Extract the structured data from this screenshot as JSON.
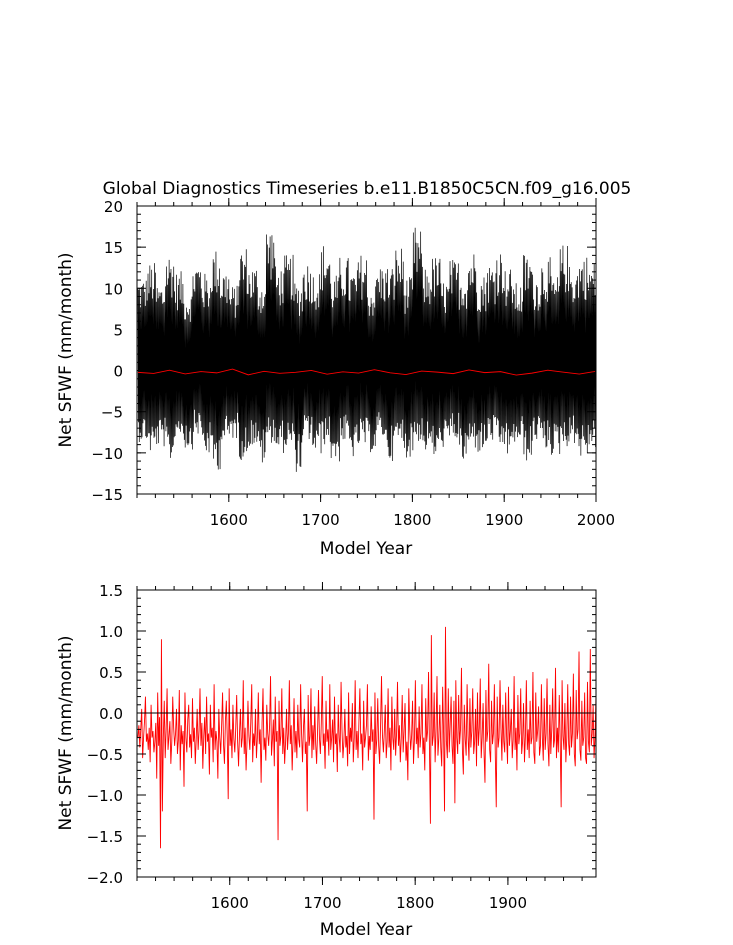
{
  "title": "Global Diagnostics Timeseries b.e11.B1850C5CN.f09_g16.005",
  "colors": {
    "monthly": "#000000",
    "annual": "#ff0000",
    "zero_line": "#000000",
    "axes": "#000000"
  },
  "chart_data": [
    {
      "type": "line",
      "title": "Global Diagnostics Timeseries b.e11.B1850C5CN.f09_g16.005",
      "xlabel": "Model Year",
      "ylabel": "Net SFWF (mm/month)",
      "xlim": [
        1500,
        2000
      ],
      "ylim": [
        -15,
        20
      ],
      "x_ticks": [
        1600,
        1700,
        1800,
        1900,
        2000
      ],
      "y_ticks": [
        -15,
        -10,
        -5,
        0,
        5,
        10,
        15,
        20
      ],
      "grid": false,
      "series": [
        {
          "style": "monthly",
          "color": "#000000",
          "x_start": 1501,
          "x_end": 1999,
          "cycle_min_values": [
            -8.7,
            -10.2,
            -9.4,
            -11.3,
            -8.1,
            -9.6,
            -7.9,
            -10.4,
            -12.1,
            -9.0,
            -8.4,
            -10.9,
            -9.3,
            -11.6,
            -8.8,
            -10.1,
            -9.7,
            -12.4,
            -8.6,
            -10.3,
            -9.1,
            -11.2,
            -8.9,
            -10.7,
            -9.5,
            -10.0,
            -8.3,
            -11.0,
            -9.2,
            -10.6,
            -8.7,
            -9.9,
            -10.8,
            -9.4,
            -8.5,
            -11.4,
            -9.6,
            -10.2,
            -8.8,
            -9.7,
            -10.5,
            -9.0,
            -11.1,
            -8.6,
            -9.8,
            -10.4,
            -9.3,
            -8.9,
            -10.7,
            -9.5
          ],
          "cycle_max_values": [
            11.5,
            13.2,
            10.8,
            14.6,
            12.1,
            9.8,
            13.7,
            11.9,
            14.9,
            12.6,
            10.4,
            15.3,
            13.0,
            11.2,
            17.9,
            12.8,
            14.1,
            10.9,
            13.5,
            12.2,
            15.6,
            11.7,
            13.9,
            12.4,
            14.3,
            10.6,
            13.1,
            12.9,
            15.2,
            11.4,
            17.6,
            12.7,
            14.0,
            11.1,
            13.6,
            12.3,
            14.8,
            11.8,
            13.3,
            15.0,
            12.5,
            10.7,
            14.4,
            12.0,
            13.8,
            11.6,
            15.4,
            12.9,
            14.2,
            13.4
          ]
        },
        {
          "style": "annual",
          "color": "#ff0000",
          "x_start": 1501,
          "x_end": 1999,
          "values": [
            -0.22,
            -0.35,
            0.05,
            -0.41,
            -0.12,
            -0.28,
            0.18,
            -0.52,
            -0.09,
            -0.33,
            -0.21,
            0.02,
            -0.44,
            -0.15,
            -0.3,
            0.11,
            -0.27,
            -0.48,
            -0.06,
            -0.19,
            -0.37,
            0.08,
            -0.25,
            -0.13,
            -0.55,
            -0.31,
            0.04,
            -0.2,
            -0.42,
            -0.1
          ]
        }
      ]
    },
    {
      "type": "line",
      "title": "",
      "xlabel": "Model Year",
      "ylabel": "Net SFWF (mm/month)",
      "xlim": [
        1500,
        1995
      ],
      "ylim": [
        -2.0,
        1.5
      ],
      "x_ticks": [
        1600,
        1700,
        1800,
        1900
      ],
      "y_ticks": [
        -2.0,
        -1.5,
        -1.0,
        -0.5,
        0.0,
        0.5,
        1.0,
        1.5
      ],
      "grid": false,
      "zero_line": true,
      "series": [
        {
          "color": "#ff0000",
          "x_start": 1501,
          "x_end": 1999,
          "values": [
            -0.3,
            -0.15,
            -0.42,
            -0.2,
            0.05,
            -0.55,
            -0.3,
            -0.1,
            0.2,
            -0.35,
            -0.25,
            -0.45,
            -0.18,
            -0.6,
            0.1,
            -0.3,
            -0.22,
            -0.48,
            -0.35,
            -0.12,
            -0.8,
            0.25,
            -0.4,
            -0.05,
            -1.65,
            0.9,
            -1.2,
            -0.3,
            0.15,
            -0.55,
            -0.2,
            0.3,
            -0.45,
            -0.28,
            -0.1,
            -0.62,
            -0.35,
            0.2,
            -0.18,
            -0.4,
            -0.25,
            0.05,
            -0.5,
            -0.33,
            0.28,
            -0.7,
            -0.15,
            -0.38,
            -0.22,
            -0.9,
            0.25,
            -0.3,
            -0.48,
            -0.08,
            0.1,
            -0.42,
            -0.26,
            -0.55,
            0.18,
            -0.35,
            -0.18,
            -0.62,
            -0.3,
            0.05,
            -0.45,
            -0.22,
            0.3,
            -0.4,
            -0.12,
            -0.68,
            -0.28,
            -0.05,
            -0.5,
            0.2,
            -0.35,
            -0.25,
            -0.75,
            0.1,
            -0.3,
            -0.18,
            -0.6,
            0.35,
            -0.45,
            -0.22,
            -0.35,
            -0.8,
            0.05,
            -0.3,
            -0.5,
            -0.15,
            0.25,
            -0.38,
            -0.62,
            -0.1,
            0.15,
            -0.3,
            -1.05,
            0.3,
            -0.4,
            -0.2,
            -0.55,
            0.1,
            -0.32,
            -0.48,
            -0.18,
            0.22,
            -0.35,
            -0.65,
            -0.25,
            0.05,
            -0.42,
            -0.3,
            0.4,
            -0.5,
            -0.18,
            -0.7,
            -0.35,
            0.15,
            -0.28,
            -0.45,
            -0.1,
            0.35,
            -0.6,
            -0.25,
            -0.4,
            0.05,
            -0.55,
            -0.3,
            0.25,
            -0.38,
            -0.2,
            -0.85,
            -0.12,
            0.3,
            -0.45,
            -0.3,
            -0.58,
            0.1,
            -0.25,
            -0.4,
            -0.15,
            0.45,
            -0.52,
            -0.32,
            -0.08,
            -0.65,
            0.2,
            -0.35,
            -0.22,
            -1.55,
            0.15,
            -0.4,
            -0.28,
            0.3,
            -0.5,
            -0.18,
            -0.62,
            -0.35,
            0.05,
            -0.45,
            -0.25,
            0.4,
            -0.38,
            -0.15,
            -0.7,
            -0.3,
            0.18,
            -0.48,
            -0.22,
            -0.55,
            0.1,
            -0.32,
            -0.42,
            0.35,
            -0.25,
            -0.6,
            -0.18,
            0.05,
            -0.5,
            -0.35,
            -1.2,
            0.22,
            -0.4,
            -0.28,
            0.3,
            -0.55,
            -0.15,
            -0.45,
            0.08,
            -0.38,
            -0.62,
            -0.22,
            0.28,
            -0.3,
            -0.5,
            -0.12,
            0.45,
            -0.4,
            -0.25,
            -0.68,
            0.15,
            -0.35,
            -0.2,
            -0.52,
            0.35,
            -0.45,
            -0.3,
            -0.08,
            -0.6,
            0.2,
            -0.38,
            -0.25,
            -0.72,
            0.1,
            -0.3,
            -0.48,
            0.38,
            -0.2,
            -0.55,
            -0.35,
            0.05,
            -0.42,
            -0.28,
            -0.65,
            0.25,
            -0.5,
            -0.18,
            -0.35,
            0.12,
            -0.6,
            -0.3,
            0.4,
            -0.45,
            -0.22,
            -0.55,
            -0.1,
            0.3,
            -0.38,
            -0.25,
            -0.7,
            0.15,
            -0.42,
            -0.3,
            -0.15,
            0.35,
            -0.58,
            -0.28,
            -0.45,
            0.08,
            -0.35,
            -0.2,
            -1.3,
            0.25,
            -0.5,
            -0.32,
            0.18,
            -0.4,
            -0.62,
            -0.15,
            0.45,
            -0.28,
            -0.48,
            -0.22,
            0.1,
            -0.55,
            -0.35,
            0.3,
            -0.42,
            -0.18,
            -0.7,
            0.2,
            -0.3,
            -0.45,
            0.05,
            -0.52,
            -0.25,
            0.38,
            -0.4,
            -0.15,
            -0.6,
            -0.3,
            0.22,
            -0.48,
            -0.22,
            0.12,
            -0.58,
            -0.35,
            -0.82,
            0.3,
            -0.2,
            -0.45,
            -0.28,
            0.15,
            -0.62,
            -0.32,
            0.4,
            -0.38,
            -0.18,
            -0.55,
            0.08,
            -0.42,
            -0.25,
            0.35,
            -0.5,
            -0.3,
            -0.7,
            0.18,
            -0.35,
            -0.22,
            0.5,
            -0.45,
            -1.35,
            0.95,
            -0.4,
            -0.28,
            0.25,
            -0.6,
            -0.2,
            0.45,
            -0.52,
            -0.3,
            0.1,
            -0.42,
            -0.65,
            0.32,
            -0.25,
            -1.2,
            1.05,
            -0.35,
            -0.55,
            0.3,
            -0.48,
            -0.15,
            0.2,
            -0.4,
            -0.62,
            0.15,
            -1.1,
            0.4,
            -0.3,
            -0.5,
            0.22,
            -0.38,
            -0.2,
            0.55,
            -0.45,
            -0.75,
            0.1,
            -0.32,
            -0.52,
            0.35,
            -0.28,
            -0.58,
            0.18,
            -0.42,
            -0.22,
            0.3,
            -0.5,
            -0.35,
            0.05,
            -0.65,
            0.25,
            -0.4,
            -0.18,
            0.42,
            -0.55,
            -0.3,
            0.12,
            -0.48,
            -0.85,
            0.28,
            -0.35,
            -0.22,
            0.6,
            -0.45,
            -0.6,
            0.15,
            -0.38,
            -0.25,
            0.35,
            -0.52,
            -1.15,
            0.2,
            -0.42,
            -0.3,
            0.4,
            -0.18,
            -0.58,
            0.1,
            -0.35,
            -0.48,
            0.25,
            -0.28,
            -0.62,
            0.32,
            -0.4,
            -0.22,
            0.05,
            -0.55,
            -0.32,
            0.45,
            -0.45,
            -0.18,
            -0.7,
            0.22,
            -0.38,
            -0.25,
            0.3,
            -0.5,
            -0.35,
            0.12,
            -0.6,
            -0.28,
            0.4,
            -0.45,
            -0.2,
            -0.55,
            0.15,
            -0.38,
            -0.3,
            0.5,
            -0.48,
            -0.62,
            0.25,
            -0.35,
            -0.22,
            0.08,
            -0.52,
            -0.4,
            0.35,
            -0.3,
            -0.58,
            0.18,
            -0.45,
            -0.25,
            0.42,
            -0.38,
            -0.65,
            0.1,
            -0.5,
            -0.2,
            0.3,
            -0.42,
            -0.32,
            0.55,
            -0.55,
            -0.18,
            -0.48,
            0.22,
            -0.35,
            -1.15,
            0.4,
            -0.28,
            -0.45,
            0.12,
            -0.6,
            -0.3,
            0.35,
            -0.38,
            -0.52,
            0.2,
            -0.42,
            -0.25,
            0.48,
            -0.5,
            -0.65,
            0.28,
            -0.32,
            -0.2,
            0.75,
            -0.45,
            -0.58,
            0.15,
            -0.4,
            -0.3,
            0.25,
            -0.55,
            -0.62,
            0.38,
            -0.35,
            -0.48,
            0.78,
            -0.4,
            -0.25,
            0.1,
            -0.55,
            -0.3,
            0.2,
            -0.38,
            -0.45,
            0.15,
            -0.28
          ]
        }
      ]
    }
  ]
}
